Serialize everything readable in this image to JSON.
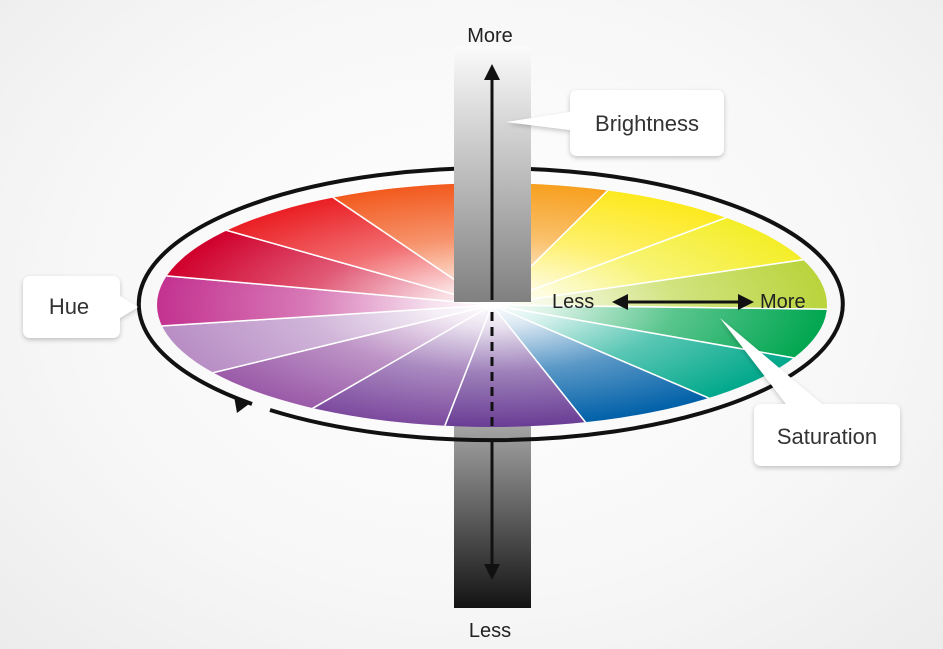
{
  "labels": {
    "brightness_more": "More",
    "brightness_less": "Less",
    "brightness": "Brightness",
    "hue": "Hue",
    "saturation": "Saturation",
    "saturation_less": "Less",
    "saturation_more": "More"
  },
  "wheel": {
    "segment_colors": [
      "#0060a8",
      "#6a3d95",
      "#7c4a9e",
      "#9a5aa8",
      "#b88ec5",
      "#c33290",
      "#d0002c",
      "#ea1f24",
      "#f25a1e",
      "#f7a01f",
      "#fde91e",
      "#f4ee28",
      "#b9d43c",
      "#00a650",
      "#00a88b"
    ],
    "divider_color": "#ffffff",
    "ring_color": "#111111"
  },
  "colors": {
    "callout_fill": "#ffffff",
    "axis_arrow": "#111111"
  }
}
